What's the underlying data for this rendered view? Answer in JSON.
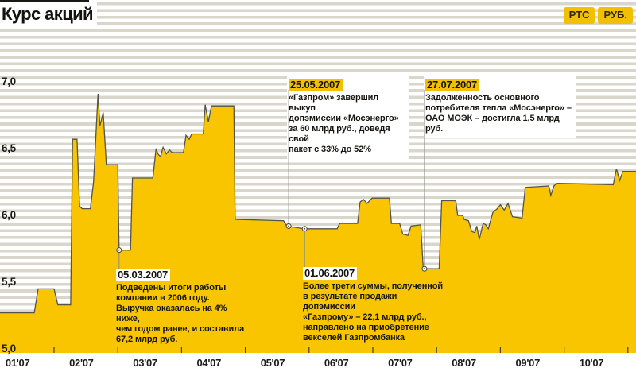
{
  "title": "Курс акций",
  "badges": [
    {
      "label": "РТС"
    },
    {
      "label": "РУБ."
    }
  ],
  "colors": {
    "area_yellow": "#f8c500",
    "badge_yellow": "#f2c000",
    "stripe_gray": "#d9d6cc",
    "edge_dark": "#56534b",
    "connector_gray": "#8d8b83",
    "text_black": "#14130f"
  },
  "chart_data": {
    "type": "area",
    "title": "Курс акций",
    "legend": "РТС, руб.",
    "grid": "striped horizontal bands",
    "x_axis": {
      "unit": "month of 2007 (decimal, 2.0 = 1 Feb 2007)",
      "labels": [
        {
          "m": 1,
          "label": "01'07"
        },
        {
          "m": 2,
          "label": "02'07"
        },
        {
          "m": 3,
          "label": "03'07"
        },
        {
          "m": 4,
          "label": "04'07"
        },
        {
          "m": 5,
          "label": "05'07"
        },
        {
          "m": 6,
          "label": "06'07"
        },
        {
          "m": 7,
          "label": "07'07"
        },
        {
          "m": 8,
          "label": "08'07"
        },
        {
          "m": 9,
          "label": "09'07"
        },
        {
          "m": 10,
          "label": "10'07"
        }
      ]
    },
    "y_axis": {
      "min": 5.0,
      "max": 7.0,
      "ticks": [
        {
          "v": 7.0,
          "label": "7,0"
        },
        {
          "v": 6.5,
          "label": "6,5"
        },
        {
          "v": 6.0,
          "label": "6,0"
        },
        {
          "v": 5.5,
          "label": "5,5"
        },
        {
          "v": 5.0,
          "label": "5,0"
        }
      ]
    },
    "series": [
      {
        "name": "РТС, руб.",
        "points": [
          [
            1.15,
            5.27
          ],
          [
            1.69,
            5.27
          ],
          [
            1.75,
            5.45
          ],
          [
            2.0,
            5.45
          ],
          [
            2.06,
            5.33
          ],
          [
            2.26,
            5.33
          ],
          [
            2.29,
            6.57
          ],
          [
            2.36,
            6.57
          ],
          [
            2.4,
            6.07
          ],
          [
            2.44,
            6.05
          ],
          [
            2.57,
            6.05
          ],
          [
            2.62,
            6.25
          ],
          [
            2.69,
            6.91
          ],
          [
            2.72,
            6.67
          ],
          [
            2.77,
            6.77
          ],
          [
            2.82,
            6.38
          ],
          [
            3.0,
            6.38
          ],
          [
            3.02,
            5.74
          ],
          [
            3.2,
            5.74
          ],
          [
            3.23,
            6.28
          ],
          [
            3.55,
            6.28
          ],
          [
            3.6,
            6.5
          ],
          [
            3.63,
            6.46
          ],
          [
            3.67,
            6.44
          ],
          [
            3.71,
            6.51
          ],
          [
            3.76,
            6.46
          ],
          [
            3.81,
            6.49
          ],
          [
            3.85,
            6.47
          ],
          [
            4.03,
            6.47
          ],
          [
            4.07,
            6.6
          ],
          [
            4.12,
            6.57
          ],
          [
            4.16,
            6.61
          ],
          [
            4.34,
            6.61
          ],
          [
            4.37,
            6.83
          ],
          [
            4.42,
            6.7
          ],
          [
            4.47,
            6.82
          ],
          [
            4.82,
            6.82
          ],
          [
            4.84,
            5.97
          ],
          [
            5.6,
            5.96
          ],
          [
            5.65,
            5.92
          ],
          [
            5.93,
            5.9
          ],
          [
            6.44,
            5.9
          ],
          [
            6.48,
            5.94
          ],
          [
            6.76,
            5.94
          ],
          [
            6.8,
            6.1
          ],
          [
            6.85,
            6.12
          ],
          [
            6.91,
            6.09
          ],
          [
            6.99,
            6.13
          ],
          [
            7.26,
            6.13
          ],
          [
            7.29,
            5.94
          ],
          [
            7.42,
            5.94
          ],
          [
            7.47,
            5.86
          ],
          [
            7.55,
            5.85
          ],
          [
            7.6,
            5.92
          ],
          [
            7.75,
            5.93
          ],
          [
            7.79,
            5.6
          ],
          [
            8.04,
            5.6
          ],
          [
            8.08,
            6.11
          ],
          [
            8.3,
            6.11
          ],
          [
            8.33,
            6.0
          ],
          [
            8.41,
            6.0
          ],
          [
            8.43,
            5.97
          ],
          [
            8.5,
            5.96
          ],
          [
            8.55,
            5.88
          ],
          [
            8.6,
            5.87
          ],
          [
            8.63,
            5.92
          ],
          [
            8.67,
            5.82
          ],
          [
            8.73,
            5.94
          ],
          [
            8.77,
            5.93
          ],
          [
            8.81,
            5.9
          ],
          [
            8.88,
            6.02
          ],
          [
            8.95,
            6.05
          ],
          [
            9.0,
            6.08
          ],
          [
            9.06,
            6.04
          ],
          [
            9.12,
            6.09
          ],
          [
            9.19,
            5.99
          ],
          [
            9.34,
            5.98
          ],
          [
            9.39,
            6.21
          ],
          [
            9.76,
            6.22
          ],
          [
            9.79,
            6.15
          ],
          [
            9.84,
            6.22
          ],
          [
            9.88,
            6.24
          ],
          [
            10.77,
            6.23
          ],
          [
            10.82,
            6.35
          ],
          [
            10.87,
            6.26
          ],
          [
            10.92,
            6.33
          ],
          [
            11.13,
            6.33
          ]
        ]
      }
    ]
  },
  "annotations": [
    {
      "date": "25.05.2007",
      "lines": [
        "«Газпром» завершил выкуп",
        "допэмиссии «Мосэнерго»",
        "за 60 млрд руб., доведя свой",
        "пакет с 33% до 52%"
      ],
      "marker": {
        "m": 5.68,
        "v": 5.92
      }
    },
    {
      "date": "27.07.2007",
      "lines": [
        "Задолженность основного",
        "потребителя тепла «Мосэнерго» –",
        "ОАО МОЭК – достигла 1,5 млрд руб."
      ],
      "marker": {
        "m": 7.81,
        "v": 5.6
      }
    },
    {
      "date": "05.03.2007",
      "lines": [
        "Подведены итоги работы",
        "компании в 2006 году.",
        "Выручка оказалась на 4% ниже,",
        "чем годом ранее, и составила",
        "67,2 млрд руб."
      ],
      "marker": {
        "m": 3.02,
        "v": 5.74
      }
    },
    {
      "date": "01.06.2007",
      "lines": [
        "Более трети суммы, полученной",
        "в результате продажи допэмиссии",
        "«Газпрому» – 22,1 млрд руб.,",
        "направлено на приобретение",
        "векселей Газпромбанка"
      ],
      "marker": {
        "m": 5.93,
        "v": 5.9
      }
    }
  ]
}
